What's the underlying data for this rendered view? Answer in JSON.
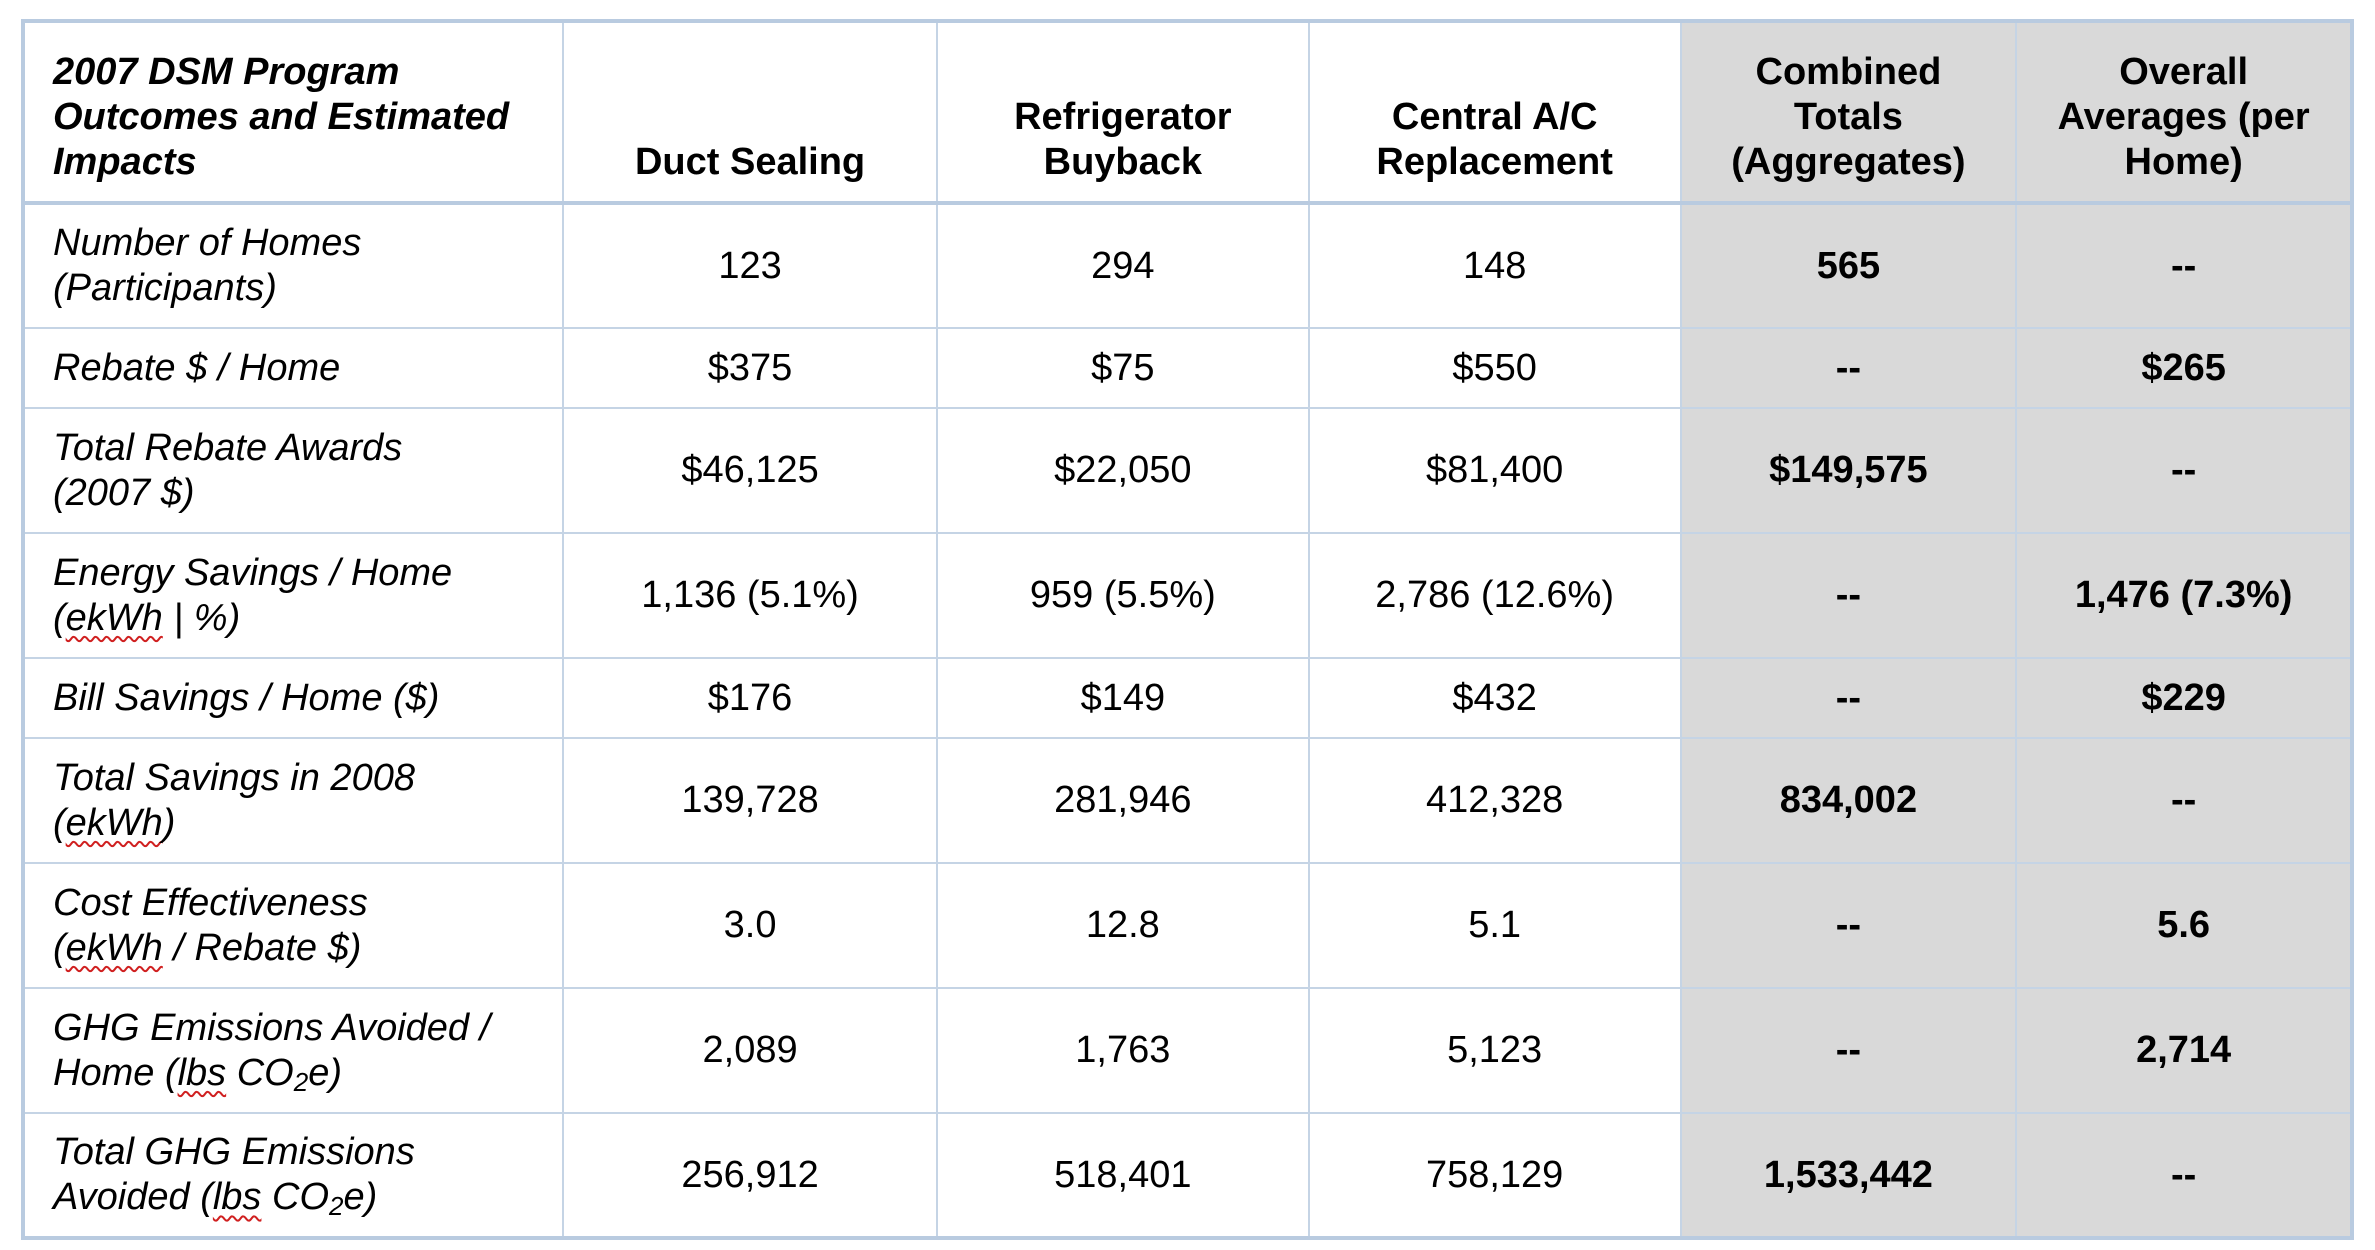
{
  "table": {
    "header": {
      "corner": [
        "2007 DSM Program",
        "Outcomes and Estimated",
        "Impacts"
      ],
      "duct_sealing": [
        "Duct Sealing"
      ],
      "refrigerator_buyback": [
        "Refrigerator",
        "Buyback"
      ],
      "central_ac": [
        "Central A/C",
        "Replacement"
      ],
      "combined_totals": [
        "Combined",
        "Totals",
        "(Aggregates)"
      ],
      "overall_averages": [
        "Overall",
        "Averages (per",
        "Home)"
      ]
    },
    "rows": [
      {
        "label": [
          "Number of Homes",
          "(Participants)"
        ],
        "duct": "123",
        "fridge": "294",
        "ac": "148",
        "combined": "565",
        "average": "--"
      },
      {
        "label": [
          "Rebate $ / Home"
        ],
        "duct": "$375",
        "fridge": "$75",
        "ac": "$550",
        "combined": "--",
        "average": "$265"
      },
      {
        "label": [
          "Total Rebate Awards",
          "(2007 $)"
        ],
        "duct": "$46,125",
        "fridge": "$22,050",
        "ac": "$81,400",
        "combined": "$149,575",
        "average": "--"
      },
      {
        "label_line1": "Energy Savings / Home",
        "label_line2_pre": "(",
        "label_line2_underlined": "ekWh",
        "label_line2_post": " | %)",
        "duct": "1,136 (5.1%)",
        "fridge": "959 (5.5%)",
        "ac": "2,786 (12.6%)",
        "combined": "--",
        "average": "1,476 (7.3%)"
      },
      {
        "label": [
          "Bill Savings / Home ($)"
        ],
        "duct": "$176",
        "fridge": "$149",
        "ac": "$432",
        "combined": "--",
        "average": "$229"
      },
      {
        "label_line1": "Total Savings in 2008",
        "label_line2_pre": "(",
        "label_line2_underlined": "ekWh",
        "label_line2_post": ")",
        "duct": "139,728",
        "fridge": "281,946",
        "ac": "412,328",
        "combined": "834,002",
        "average": "--"
      },
      {
        "label_line1": "Cost Effectiveness",
        "label_line2_pre": "(",
        "label_line2_underlined": "ekWh",
        "label_line2_post": " / Rebate $)",
        "duct": "3.0",
        "fridge": "12.8",
        "ac": "5.1",
        "combined": "--",
        "average": "5.6"
      },
      {
        "label_line1": "GHG Emissions Avoided /",
        "label_line2_pre": "Home (",
        "label_line2_underlined": "lbs",
        "label_line2_mid": " CO",
        "label_line2_sub": "2",
        "label_line2_post": "e)",
        "duct": "2,089",
        "fridge": "1,763",
        "ac": "5,123",
        "combined": "--",
        "average": "2,714"
      },
      {
        "label_line1": "Total GHG Emissions",
        "label_line2_pre": "Avoided (",
        "label_line2_underlined": "lbs",
        "label_line2_mid": " CO",
        "label_line2_sub": "2",
        "label_line2_post": "e)",
        "duct": "256,912",
        "fridge": "518,401",
        "ac": "758,129",
        "combined": "1,533,442",
        "average": "--"
      }
    ]
  },
  "colors": {
    "border": "#b9cbe0",
    "inner_border": "#c5d4e5",
    "aggregate_shading": "#d9d9d9",
    "spellcheck_underline": "#d02020"
  }
}
